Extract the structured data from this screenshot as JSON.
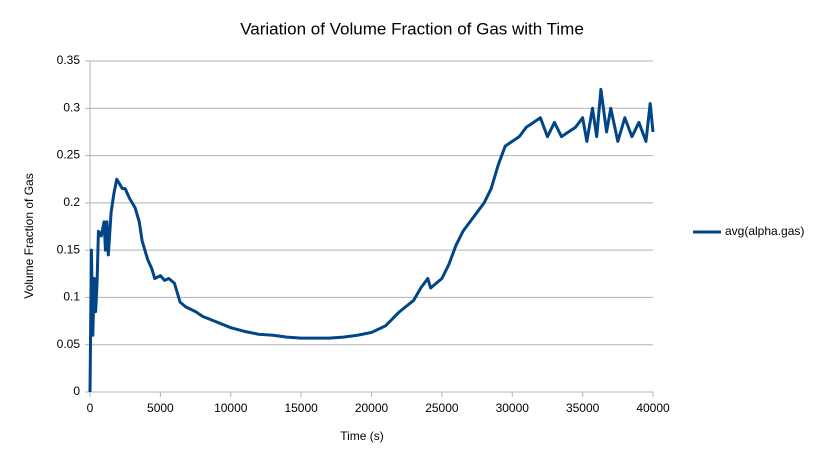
{
  "chart_data": {
    "type": "line",
    "title": "Variation of Volume Fraction of Gas with Time",
    "x_label": "Time (s)",
    "y_label": "Volume Fraction of Gas",
    "x": [
      0,
      100,
      200,
      300,
      400,
      500,
      600,
      800,
      1000,
      1100,
      1200,
      1300,
      1500,
      1700,
      1900,
      2100,
      2300,
      2500,
      2800,
      3200,
      3500,
      3700,
      3900,
      4100,
      4400,
      4600,
      5000,
      5300,
      5600,
      6000,
      6200,
      6400,
      6800,
      7500,
      8000,
      9000,
      10000,
      11000,
      12000,
      13000,
      14000,
      15000,
      16000,
      17000,
      18000,
      19000,
      20000,
      21000,
      22000,
      23000,
      23500,
      24000,
      24200,
      25000,
      25500,
      26000,
      26500,
      27000,
      27500,
      28000,
      28500,
      29000,
      29500,
      30000,
      30500,
      31000,
      31500,
      32000,
      32500,
      33000,
      33500,
      34000,
      34500,
      35000,
      35300,
      35700,
      36000,
      36300,
      36700,
      37000,
      37500,
      38000,
      38500,
      39000,
      39500,
      39800,
      40000
    ],
    "series": [
      {
        "name": "avg(alpha.gas)",
        "color": "#004586",
        "values": [
          0,
          0.15,
          0.06,
          0.12,
          0.085,
          0.115,
          0.17,
          0.165,
          0.18,
          0.15,
          0.18,
          0.145,
          0.19,
          0.21,
          0.225,
          0.22,
          0.215,
          0.215,
          0.205,
          0.195,
          0.18,
          0.16,
          0.15,
          0.14,
          0.13,
          0.12,
          0.123,
          0.118,
          0.12,
          0.115,
          0.105,
          0.095,
          0.09,
          0.085,
          0.08,
          0.074,
          0.068,
          0.064,
          0.061,
          0.06,
          0.058,
          0.057,
          0.057,
          0.057,
          0.058,
          0.06,
          0.063,
          0.07,
          0.085,
          0.097,
          0.11,
          0.12,
          0.11,
          0.12,
          0.135,
          0.155,
          0.17,
          0.18,
          0.19,
          0.2,
          0.215,
          0.24,
          0.26,
          0.265,
          0.27,
          0.28,
          0.285,
          0.29,
          0.27,
          0.285,
          0.27,
          0.275,
          0.28,
          0.29,
          0.265,
          0.3,
          0.27,
          0.32,
          0.275,
          0.3,
          0.265,
          0.29,
          0.27,
          0.285,
          0.265,
          0.305,
          0.275
        ]
      }
    ],
    "xlim": [
      0,
      40000
    ],
    "xticks": [
      0,
      5000,
      10000,
      15000,
      20000,
      25000,
      30000,
      35000,
      40000
    ],
    "ylim": [
      0,
      0.35
    ],
    "yticks": [
      0,
      0.05,
      0.1,
      0.15,
      0.2,
      0.25,
      0.3,
      0.35
    ],
    "grid": true
  }
}
